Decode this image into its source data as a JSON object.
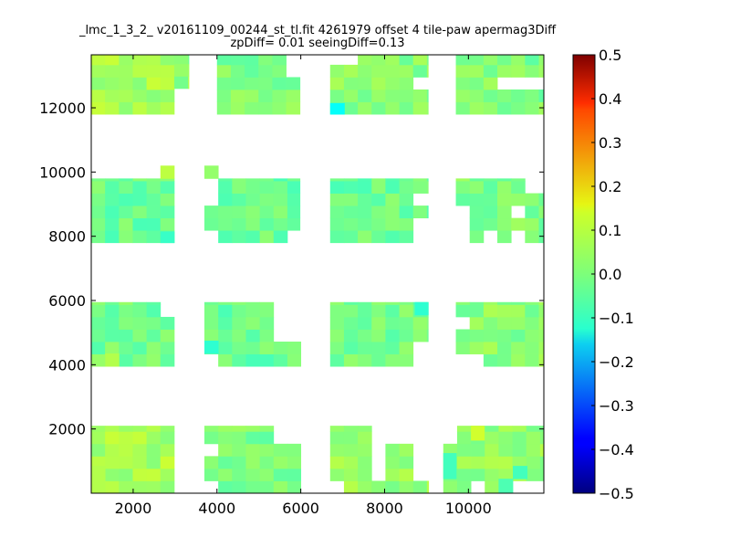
{
  "chart_data": {
    "type": "heatmap",
    "title": "_lmc_1_3_2_ v20161109_00244_st_tl.fit 4261979 offset 4 tile-paw apermag3Diff",
    "subtitle": "zpDiff= 0.01 seeingDiff=0.13",
    "xlabel": "",
    "ylabel": "",
    "xlim": [
      1000,
      11800
    ],
    "ylim": [
      0,
      13650
    ],
    "x_ticks": [
      "2000",
      "4000",
      "6000",
      "8000",
      "10000"
    ],
    "x_tick_values": [
      2000,
      4000,
      6000,
      8000,
      10000
    ],
    "y_ticks": [
      "2000",
      "4000",
      "6000",
      "8000",
      "10000",
      "12000"
    ],
    "y_tick_values": [
      2000,
      4000,
      6000,
      8000,
      10000,
      12000
    ],
    "colorbar": {
      "colormap": "jet",
      "vmin": -0.5,
      "vmax": 0.5,
      "ticks": [
        "0.5",
        "0.4",
        "0.3",
        "0.2",
        "0.1",
        "0.0",
        "−0.1",
        "−0.2",
        "−0.3",
        "−0.4",
        "−0.5"
      ],
      "tick_values": [
        0.5,
        0.4,
        0.3,
        0.2,
        0.1,
        0.0,
        -0.1,
        -0.2,
        -0.3,
        -0.4,
        -0.5
      ]
    },
    "cell_size": [
      330,
      385
    ],
    "grid": false,
    "tiles": [
      {
        "x0": 1000,
        "x1": 2980,
        "y0": 11800,
        "y1": 13650,
        "value": 0.04
      },
      {
        "x0": 2980,
        "x1": 3330,
        "y0": 12600,
        "y1": 13650,
        "value": 0.02
      },
      {
        "x0": 4000,
        "x1": 5980,
        "y0": 11800,
        "y1": 13650,
        "value": 0.0
      },
      {
        "x0": 6700,
        "x1": 9040,
        "y0": 11800,
        "y1": 13650,
        "value": 0.01
      },
      {
        "x0": 9700,
        "x1": 11800,
        "y0": 11800,
        "y1": 13650,
        "value": 0.0
      },
      {
        "x0": 1000,
        "x1": 2980,
        "y0": 7800,
        "y1": 9800,
        "value": -0.02
      },
      {
        "x0": 3700,
        "x1": 5980,
        "y0": 7800,
        "y1": 9800,
        "value": -0.02
      },
      {
        "x0": 6700,
        "x1": 9040,
        "y0": 7800,
        "y1": 9800,
        "value": -0.02
      },
      {
        "x0": 9700,
        "x1": 11800,
        "y0": 7800,
        "y1": 9800,
        "value": 0.0
      },
      {
        "x0": 1000,
        "x1": 2980,
        "y0": 3950,
        "y1": 5950,
        "value": -0.01
      },
      {
        "x0": 3700,
        "x1": 6000,
        "y0": 3950,
        "y1": 5950,
        "value": -0.02
      },
      {
        "x0": 6700,
        "x1": 9040,
        "y0": 3950,
        "y1": 5950,
        "value": -0.01
      },
      {
        "x0": 9700,
        "x1": 11800,
        "y0": 3950,
        "y1": 5950,
        "value": 0.01
      },
      {
        "x0": 1000,
        "x1": 2980,
        "y0": 0,
        "y1": 2100,
        "value": 0.04
      },
      {
        "x0": 3700,
        "x1": 6000,
        "y0": 0,
        "y1": 2100,
        "value": 0.0
      },
      {
        "x0": 6700,
        "x1": 9050,
        "y0": 0,
        "y1": 2100,
        "value": 0.02
      },
      {
        "x0": 9400,
        "x1": 11800,
        "y0": 0,
        "y1": 2100,
        "value": 0.02
      }
    ],
    "holes": [
      {
        "x0": 2980,
        "x1": 3330,
        "y0": 11800,
        "y1": 12600
      },
      {
        "x0": 5650,
        "x1": 5980,
        "y0": 12950,
        "y1": 13650
      },
      {
        "x0": 6700,
        "x1": 7400,
        "y0": 13300,
        "y1": 13650
      },
      {
        "x0": 8720,
        "x1": 9040,
        "y0": 12600,
        "y1": 12950
      },
      {
        "x0": 10700,
        "x1": 11800,
        "y0": 12600,
        "y1": 12950
      },
      {
        "x0": 3700,
        "x1": 4000,
        "y0": 8900,
        "y1": 9800
      },
      {
        "x0": 3700,
        "x1": 4000,
        "y0": 7800,
        "y1": 8150
      },
      {
        "x0": 5650,
        "x1": 5980,
        "y0": 7800,
        "y1": 8150
      },
      {
        "x0": 8720,
        "x1": 9040,
        "y0": 8900,
        "y1": 9250
      },
      {
        "x0": 8720,
        "x1": 9040,
        "y0": 7800,
        "y1": 8550
      },
      {
        "x0": 9700,
        "x1": 10060,
        "y0": 7800,
        "y1": 8900
      },
      {
        "x0": 10380,
        "x1": 10720,
        "y0": 7800,
        "y1": 8150
      },
      {
        "x0": 11060,
        "x1": 11400,
        "y0": 7800,
        "y1": 8150
      },
      {
        "x0": 11060,
        "x1": 11400,
        "y0": 8550,
        "y1": 8900
      },
      {
        "x0": 11400,
        "x1": 11800,
        "y0": 9250,
        "y1": 9800
      },
      {
        "x0": 2620,
        "x1": 2980,
        "y0": 5550,
        "y1": 5950
      },
      {
        "x0": 5360,
        "x1": 6000,
        "y0": 4750,
        "y1": 5950
      },
      {
        "x0": 3700,
        "x1": 4030,
        "y0": 3950,
        "y1": 4350
      },
      {
        "x0": 8720,
        "x1": 9040,
        "y0": 3950,
        "y1": 4750
      },
      {
        "x0": 9700,
        "x1": 10060,
        "y0": 5150,
        "y1": 5550
      },
      {
        "x0": 9700,
        "x1": 10380,
        "y0": 3950,
        "y1": 4350
      },
      {
        "x0": 3700,
        "x1": 4030,
        "y0": 1250,
        "y1": 1650
      },
      {
        "x0": 3700,
        "x1": 4030,
        "y0": 0,
        "y1": 450
      },
      {
        "x0": 5360,
        "x1": 6000,
        "y0": 1650,
        "y1": 2100
      },
      {
        "x0": 6700,
        "x1": 6980,
        "y0": 0,
        "y1": 450
      },
      {
        "x0": 7710,
        "x1": 9050,
        "y0": 1650,
        "y1": 2100
      },
      {
        "x0": 7710,
        "x1": 8040,
        "y0": 450,
        "y1": 1650
      },
      {
        "x0": 8720,
        "x1": 9050,
        "y0": 450,
        "y1": 1650
      },
      {
        "x0": 9400,
        "x1": 9710,
        "y0": 1650,
        "y1": 2100
      },
      {
        "x0": 10060,
        "x1": 10400,
        "y0": 0,
        "y1": 450
      },
      {
        "x0": 10720,
        "x1": 11800,
        "y0": 0,
        "y1": 450
      }
    ],
    "extras": [
      {
        "x0": 2650,
        "x1": 2980,
        "y0": 9800,
        "y1": 10200,
        "value": 0.06
      },
      {
        "x0": 3700,
        "x1": 4030,
        "y0": 9800,
        "y1": 10200,
        "value": 0.02
      },
      {
        "x0": 10720,
        "x1": 11060,
        "y0": 0,
        "y1": 450,
        "value": -0.05
      }
    ],
    "highlights": [
      {
        "x0": 6700,
        "x1": 7040,
        "y0": 11800,
        "y1": 12150,
        "value": -0.12
      },
      {
        "x0": 2650,
        "x1": 2980,
        "y0": 7800,
        "y1": 8150,
        "value": -0.07
      },
      {
        "x0": 3700,
        "x1": 4030,
        "y0": 4350,
        "y1": 4750,
        "value": -0.08
      },
      {
        "x0": 8720,
        "x1": 9040,
        "y0": 5550,
        "y1": 5950,
        "value": -0.08
      },
      {
        "x0": 10060,
        "x1": 10380,
        "y0": 1650,
        "y1": 2100,
        "value": 0.08
      },
      {
        "x0": 9400,
        "x1": 9710,
        "y0": 450,
        "y1": 1250,
        "value": -0.06
      },
      {
        "x0": 11060,
        "x1": 11400,
        "y0": 450,
        "y1": 850,
        "value": -0.06
      },
      {
        "x0": 1000,
        "x1": 1330,
        "y0": 0,
        "y1": 850,
        "value": 0.05
      },
      {
        "x0": 1330,
        "x1": 1660,
        "y0": 3950,
        "y1": 4350,
        "value": 0.05
      }
    ]
  }
}
